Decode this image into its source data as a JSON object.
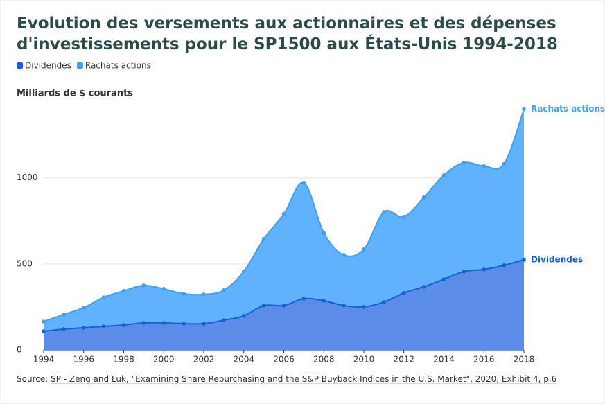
{
  "chart_data": {
    "type": "stacked_area",
    "title": "Evolution des versements aux actionnaires et des dépenses d'investissements pour le SP1500 aux États-Unis 1994-2018",
    "y_label": "Milliards de $ courants",
    "x": [
      1994,
      1995,
      1996,
      1997,
      1998,
      1999,
      2000,
      2001,
      2002,
      2003,
      2004,
      2005,
      2006,
      2007,
      2008,
      2009,
      2010,
      2011,
      2012,
      2013,
      2014,
      2015,
      2016,
      2017,
      2018
    ],
    "series": [
      {
        "name": "Dividendes",
        "color": "#1a5fd6",
        "fill": "#5b8ce8",
        "values": [
          109,
          121,
          129,
          137,
          145,
          157,
          157,
          153,
          153,
          173,
          198,
          258,
          258,
          298,
          286,
          258,
          250,
          278,
          331,
          367,
          411,
          456,
          468,
          492,
          524
        ]
      },
      {
        "name": "Rachats actions",
        "color": "#3fa0f2",
        "fill": "#5fb2fb",
        "values": [
          56,
          85,
          117,
          169,
          198,
          218,
          198,
          174,
          170,
          174,
          258,
          387,
          532,
          674,
          395,
          294,
          335,
          524,
          443,
          520,
          605,
          633,
          601,
          589,
          875
        ]
      }
    ],
    "xlim": [
      1994,
      2018
    ],
    "xticks": [
      1994,
      1996,
      1998,
      2000,
      2002,
      2004,
      2006,
      2008,
      2010,
      2012,
      2014,
      2016,
      2018
    ],
    "ylim": [
      0,
      1450
    ],
    "yticks": [
      0,
      500,
      1000
    ],
    "grid": true,
    "legend": "top-left",
    "source": {
      "label": "Source:",
      "link": "SP - Zeng and Luk, \"Examining Share Repurchasing and the S&P Buyback Indices in the U.S. Market\", 2020, Exhibit 4, p.6"
    }
  }
}
